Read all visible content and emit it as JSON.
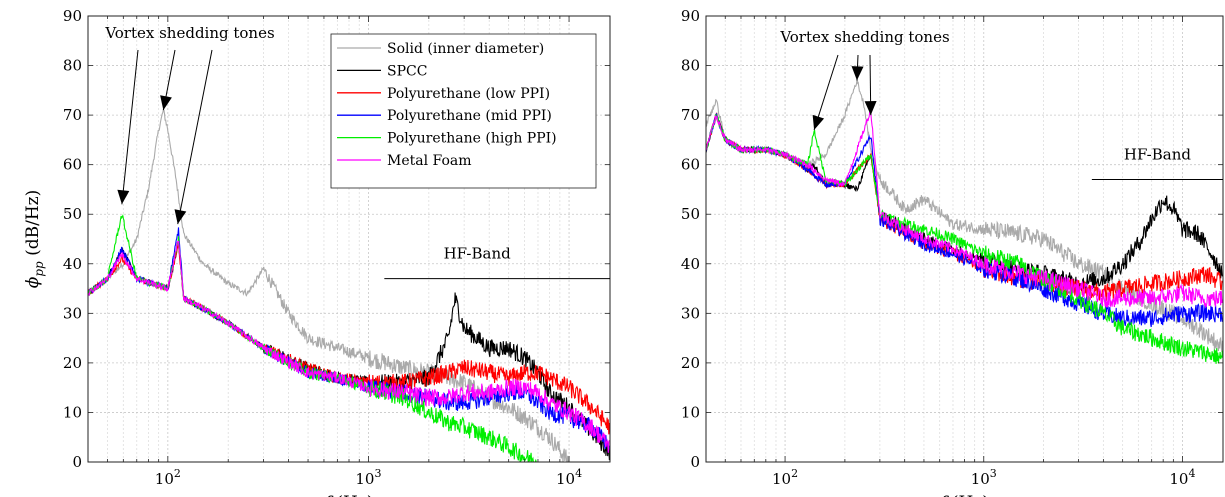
{
  "chart_data": [
    {
      "type": "line",
      "xscale": "log",
      "xlim": [
        40,
        16000
      ],
      "ylim": [
        0,
        90
      ],
      "xlabel": "f (Hz)",
      "ylabel": "ϕpp (dB/Hz)",
      "xticklabels": [
        "10^2",
        "10^3",
        "10^4"
      ],
      "xticks": [
        100,
        1000,
        10000
      ],
      "yticks": [
        0,
        10,
        20,
        30,
        40,
        50,
        60,
        70,
        80,
        90
      ],
      "grid": true,
      "legend": "top-center",
      "annotations": [
        {
          "text": "Vortex shedding tones",
          "arrows_to": [
            [
              59,
              52
            ],
            [
              95,
              71
            ],
            [
              112,
              48
            ]
          ]
        },
        {
          "text": "HF-Band",
          "band": [
            1200,
            16000
          ],
          "level": 37
        }
      ],
      "series": [
        {
          "name": "Solid (inner diameter)",
          "color": "#aaaaaa",
          "x": [
            40,
            50,
            60,
            70,
            80,
            90,
            95,
            100,
            110,
            120,
            150,
            200,
            250,
            300,
            400,
            500,
            700,
            1000,
            1500,
            2000,
            3000,
            4000,
            5000,
            6000,
            7000,
            8000,
            10000
          ],
          "y": [
            34,
            37,
            40,
            45,
            55,
            67,
            71,
            67,
            57,
            46,
            40,
            36,
            34,
            39,
            30,
            25,
            23,
            21,
            19,
            18,
            16,
            13,
            11,
            9,
            7,
            5,
            0
          ]
        },
        {
          "name": "SPCC",
          "color": "#000000",
          "x": [
            40,
            50,
            59,
            70,
            100,
            113,
            120,
            150,
            200,
            300,
            500,
            700,
            1000,
            1500,
            2000,
            2500,
            2700,
            3000,
            4000,
            5000,
            6000,
            7000,
            8000,
            10000,
            13000,
            16000
          ],
          "y": [
            34,
            37,
            43,
            37,
            35,
            44,
            33,
            31,
            28,
            23,
            19,
            17,
            16,
            16,
            17,
            25,
            33,
            27,
            23,
            23,
            21,
            18,
            14,
            11,
            6,
            2
          ]
        },
        {
          "name": "Polyurethane (low PPI)",
          "color": "#ff0000",
          "x": [
            40,
            50,
            59,
            70,
            100,
            113,
            120,
            150,
            200,
            300,
            500,
            700,
            1000,
            1500,
            2000,
            2500,
            3000,
            4000,
            5000,
            6000,
            7000,
            8000,
            10000,
            13000,
            16000
          ],
          "y": [
            34,
            37,
            41,
            37,
            35,
            44,
            33,
            31,
            28,
            23,
            19,
            17,
            16,
            16,
            17,
            18,
            19,
            18,
            17,
            18,
            18,
            17,
            15,
            11,
            7
          ]
        },
        {
          "name": "Polyurethane (mid PPI)",
          "color": "#0000ff",
          "x": [
            40,
            50,
            59,
            70,
            100,
            113,
            120,
            150,
            200,
            300,
            500,
            700,
            1000,
            1500,
            2000,
            2500,
            3000,
            4000,
            5000,
            6000,
            7000,
            8000,
            10000,
            13000,
            16000
          ],
          "y": [
            34,
            37,
            43,
            37,
            35,
            47,
            33,
            31,
            28,
            23,
            18,
            17,
            15,
            14,
            13,
            12,
            12,
            13,
            14,
            14,
            12,
            10,
            9,
            7,
            3
          ]
        },
        {
          "name": "Polyurethane (high PPI)",
          "color": "#00ee00",
          "x": [
            40,
            50,
            59,
            70,
            100,
            113,
            120,
            150,
            200,
            300,
            500,
            700,
            1000,
            1500,
            2000,
            2500,
            3000,
            4000,
            5000,
            6000,
            7000
          ],
          "y": [
            34,
            37,
            50,
            37,
            35,
            45,
            33,
            31,
            28,
            23,
            18,
            17,
            15,
            13,
            10,
            8,
            7,
            5,
            3,
            1,
            0
          ]
        },
        {
          "name": "Metal Foam",
          "color": "#ff00ff",
          "x": [
            40,
            50,
            59,
            70,
            100,
            113,
            120,
            150,
            200,
            300,
            500,
            700,
            1000,
            1500,
            2000,
            2500,
            3000,
            4000,
            5000,
            6000,
            7000,
            8000,
            10000,
            13000,
            16000
          ],
          "y": [
            34,
            37,
            42,
            37,
            35,
            45,
            33,
            31,
            28,
            23,
            18,
            17,
            15,
            14,
            13,
            13,
            14,
            14,
            15,
            15,
            14,
            12,
            10,
            7,
            3
          ]
        }
      ]
    },
    {
      "type": "line",
      "xscale": "log",
      "xlim": [
        40,
        16000
      ],
      "ylim": [
        0,
        90
      ],
      "xlabel": "f (Hz)",
      "ylabel": "",
      "xticklabels": [
        "10^2",
        "10^3",
        "10^4"
      ],
      "xticks": [
        100,
        1000,
        10000
      ],
      "yticks": [
        0,
        10,
        20,
        30,
        40,
        50,
        60,
        70,
        80,
        90
      ],
      "grid": true,
      "annotations": [
        {
          "text": "Vortex shedding tones",
          "arrows_to": [
            [
              140,
              67
            ],
            [
              230,
              77
            ],
            [
              270,
              70
            ]
          ]
        },
        {
          "text": "HF-Band",
          "band": [
            3500,
            16000
          ],
          "level": 57
        }
      ],
      "series": [
        {
          "name": "Solid (inner diameter)",
          "color": "#aaaaaa",
          "x": [
            40,
            45,
            50,
            60,
            80,
            100,
            130,
            160,
            200,
            230,
            250,
            270,
            300,
            350,
            400,
            500,
            700,
            1000,
            1500,
            2000,
            3000,
            4000,
            5000,
            7000,
            10000,
            13000,
            16000
          ],
          "y": [
            68,
            73,
            65,
            63,
            63,
            62,
            60,
            62,
            70,
            77,
            72,
            63,
            57,
            54,
            51,
            53,
            48,
            47,
            46,
            45,
            40,
            38,
            35,
            32,
            29,
            26,
            23
          ]
        },
        {
          "name": "SPCC",
          "color": "#000000",
          "x": [
            40,
            45,
            50,
            60,
            80,
            100,
            130,
            140,
            160,
            200,
            230,
            270,
            300,
            400,
            500,
            700,
            1000,
            1500,
            2000,
            3000,
            4000,
            5000,
            6000,
            7000,
            8000,
            9000,
            10000,
            12000,
            14000,
            16000
          ],
          "y": [
            63,
            70,
            65,
            63,
            63,
            62,
            59,
            60,
            56,
            56,
            55,
            62,
            50,
            47,
            45,
            43,
            41,
            39,
            38,
            36,
            37,
            40,
            44,
            49,
            53,
            51,
            47,
            46,
            42,
            38
          ]
        },
        {
          "name": "Polyurethane (low PPI)",
          "color": "#ff0000",
          "x": [
            40,
            45,
            50,
            60,
            80,
            100,
            130,
            160,
            200,
            270,
            300,
            400,
            500,
            700,
            1000,
            1500,
            2000,
            3000,
            4000,
            5000,
            7000,
            10000,
            13000,
            16000
          ],
          "y": [
            63,
            70,
            65,
            63,
            63,
            62,
            59,
            56,
            56,
            62,
            49,
            46,
            44,
            42,
            39,
            37,
            36,
            35,
            34,
            35,
            36,
            37,
            38,
            36
          ]
        },
        {
          "name": "Polyurethane (mid PPI)",
          "color": "#0000ff",
          "x": [
            40,
            45,
            50,
            60,
            80,
            100,
            130,
            160,
            200,
            270,
            300,
            400,
            500,
            700,
            1000,
            1500,
            2000,
            3000,
            4000,
            5000,
            7000,
            10000,
            13000,
            16000
          ],
          "y": [
            63,
            70,
            65,
            63,
            63,
            62,
            59,
            56,
            56,
            66,
            49,
            46,
            44,
            42,
            39,
            37,
            35,
            32,
            30,
            29,
            29,
            30,
            30,
            30
          ]
        },
        {
          "name": "Polyurethane (high PPI)",
          "color": "#00ee00",
          "x": [
            40,
            45,
            50,
            60,
            80,
            100,
            130,
            140,
            160,
            200,
            270,
            300,
            400,
            500,
            700,
            1000,
            1500,
            2000,
            3000,
            4000,
            5000,
            7000,
            10000,
            13000,
            16000
          ],
          "y": [
            63,
            70,
            65,
            63,
            63,
            62,
            60,
            67,
            57,
            56,
            62,
            50,
            48,
            47,
            45,
            42,
            40,
            37,
            33,
            30,
            27,
            25,
            23,
            22,
            21
          ]
        },
        {
          "name": "Metal Foam",
          "color": "#ff00ff",
          "x": [
            40,
            45,
            50,
            60,
            80,
            100,
            130,
            160,
            200,
            270,
            300,
            400,
            500,
            700,
            1000,
            1500,
            2000,
            3000,
            4000,
            5000,
            7000,
            10000,
            13000,
            16000
          ],
          "y": [
            63,
            70,
            65,
            63,
            63,
            62,
            60,
            57,
            56,
            71,
            50,
            47,
            45,
            43,
            40,
            38,
            37,
            35,
            33,
            33,
            33,
            34,
            33,
            33
          ]
        }
      ]
    }
  ]
}
